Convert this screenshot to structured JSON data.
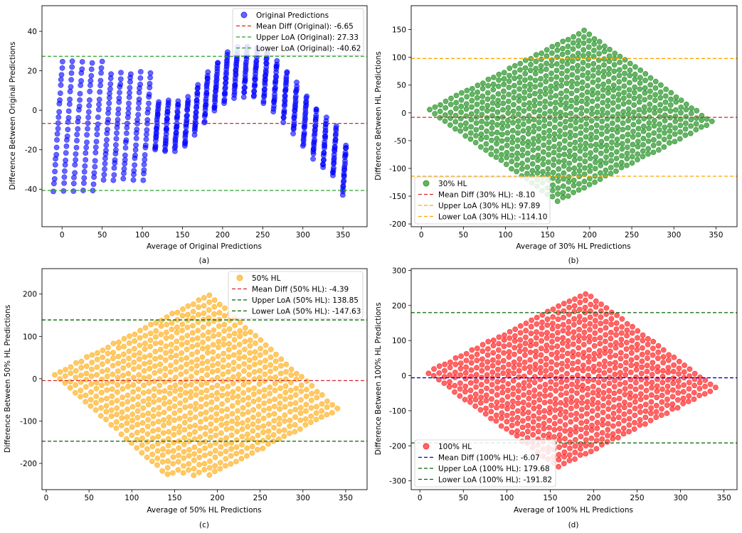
{
  "chart_data": [
    {
      "type": "scatter",
      "caption": "(a)",
      "xlabel": "Average of Original Predictions",
      "ylabel": "Difference Between Original Predictions",
      "xlim": [
        -25,
        380
      ],
      "ylim": [
        -59,
        53
      ],
      "xticks": [
        0,
        50,
        100,
        150,
        200,
        250,
        300,
        350
      ],
      "yticks": [
        -40,
        -20,
        0,
        20,
        40
      ],
      "pattern": "sawtooth",
      "series": [
        {
          "name": "Original Predictions",
          "color": "#0000ff",
          "alpha": 0.6,
          "marker": "circle"
        }
      ],
      "lines": [
        {
          "label": "Mean Diff (Original): -6.65",
          "value": -6.65,
          "color": "#d62728",
          "style": "dashed"
        },
        {
          "label": "Upper LoA (Original): 27.33",
          "value": 27.33,
          "color": "#2ca02c",
          "style": "dashed"
        },
        {
          "label": "Lower LoA (Original): -40.62",
          "value": -40.62,
          "color": "#2ca02c",
          "style": "dashed"
        }
      ],
      "legend_loc": "upper right"
    },
    {
      "type": "scatter",
      "caption": "(b)",
      "xlabel": "Average of 30% HL Predictions",
      "ylabel": "Difference Between HL Predictions",
      "xlim": [
        -12,
        375
      ],
      "ylim": [
        -205,
        193
      ],
      "xticks": [
        0,
        50,
        100,
        150,
        200,
        250,
        300,
        350
      ],
      "yticks": [
        -200,
        -150,
        -100,
        -50,
        0,
        50,
        100,
        150
      ],
      "pattern": "diagonal",
      "band": {
        "k": 1.2,
        "x0": 10,
        "x1": 355,
        "amp": 16
      },
      "series": [
        {
          "name": "30% HL",
          "color": "#008000",
          "alpha": 0.6,
          "marker": "circle"
        }
      ],
      "lines": [
        {
          "label": "Mean Diff (30% HL): -8.10",
          "value": -8.1,
          "color": "#d62728",
          "style": "dashed"
        },
        {
          "label": "Upper LoA (30% HL): 97.89",
          "value": 97.89,
          "color": "#ffa500",
          "style": "dashed"
        },
        {
          "label": "Lower LoA (30% HL): -114.10",
          "value": -114.1,
          "color": "#ffa500",
          "style": "dashed"
        }
      ],
      "legend_loc": "lower left"
    },
    {
      "type": "scatter",
      "caption": "(c)",
      "xlabel": "Average of 50% HL Predictions",
      "ylabel": "Difference Between 50% HL Predictions",
      "xlim": [
        -5,
        375
      ],
      "ylim": [
        -262,
        260
      ],
      "xticks": [
        0,
        50,
        100,
        150,
        200,
        250,
        300,
        350
      ],
      "yticks": [
        -200,
        -100,
        0,
        100,
        200
      ],
      "pattern": "diagonal",
      "band": {
        "k": 2.0,
        "x0": 10,
        "x1": 350,
        "amp": 25
      },
      "series": [
        {
          "name": "50% HL",
          "color": "#ffa500",
          "alpha": 0.6,
          "marker": "circle"
        }
      ],
      "lines": [
        {
          "label": "Mean Diff (50% HL): -4.39",
          "value": -4.39,
          "color": "#d62728",
          "style": "dashed"
        },
        {
          "label": "Upper LoA (50% HL): 138.85",
          "value": 138.85,
          "color": "#006400",
          "style": "dashed"
        },
        {
          "label": "Lower LoA (50% HL): -147.63",
          "value": -147.63,
          "color": "#006400",
          "style": "dashed"
        }
      ],
      "legend_loc": "upper right"
    },
    {
      "type": "scatter",
      "caption": "(d)",
      "xlabel": "Average of 100% HL Predictions",
      "ylabel": "Difference Between 100% HL Predictions",
      "xlim": [
        -10,
        365
      ],
      "ylim": [
        -325,
        305
      ],
      "xticks": [
        0,
        50,
        100,
        150,
        200,
        250,
        300,
        350
      ],
      "yticks": [
        -300,
        -200,
        -100,
        0,
        100,
        200,
        300
      ],
      "pattern": "diagonal",
      "band": {
        "k": 2.0,
        "x0": 10,
        "x1": 350,
        "amp": 30
      },
      "series": [
        {
          "name": "100% HL",
          "color": "#ff0000",
          "alpha": 0.6,
          "marker": "circle"
        }
      ],
      "lines": [
        {
          "label": "Mean Diff (100% HL): -6.07",
          "value": -6.07,
          "color": "#0000cd",
          "style": "dashed"
        },
        {
          "label": "Upper LoA (100% HL): 179.68",
          "value": 179.68,
          "color": "#006400",
          "style": "dashed"
        },
        {
          "label": "Lower LoA (100% HL): -191.82",
          "value": -191.82,
          "color": "#006400",
          "style": "dashed"
        }
      ],
      "legend_loc": "lower left"
    }
  ]
}
